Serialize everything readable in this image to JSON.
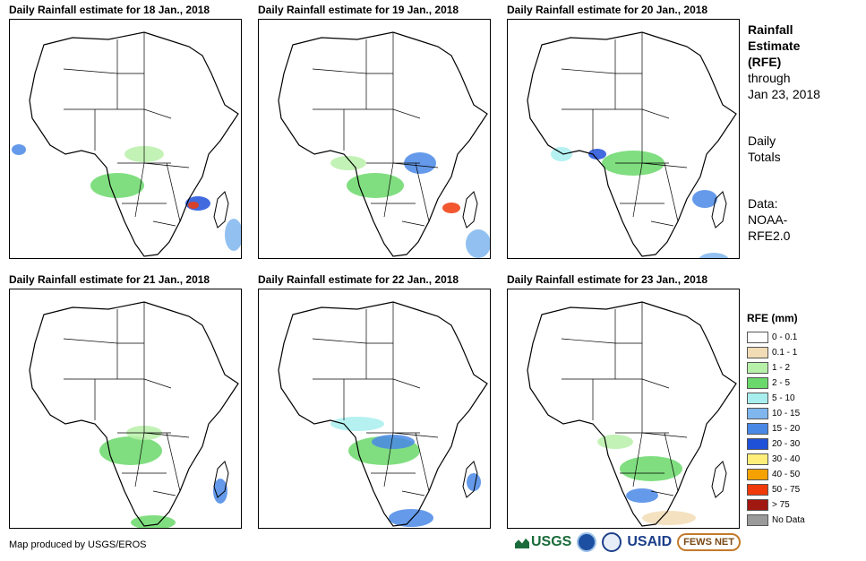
{
  "panels": [
    {
      "title": "Daily Rainfall estimate for 18 Jan., 2018"
    },
    {
      "title": "Daily Rainfall estimate for 19 Jan., 2018"
    },
    {
      "title": "Daily Rainfall estimate for 20 Jan., 2018"
    },
    {
      "title": "Daily Rainfall estimate for 21 Jan., 2018"
    },
    {
      "title": "Daily Rainfall estimate for 22 Jan., 2018"
    },
    {
      "title": "Daily Rainfall estimate for 23 Jan., 2018"
    }
  ],
  "sidebar": {
    "title_line1": "Rainfall",
    "title_line2": "Estimate",
    "title_line3": "(RFE)",
    "through_label": "through",
    "through_date": "Jan 23, 2018",
    "totals_line1": "Daily",
    "totals_line2": "Totals",
    "data_line1": "Data:",
    "data_line2": "NOAA-",
    "data_line3": "RFE2.0"
  },
  "legend": {
    "title": "RFE (mm)",
    "items": [
      {
        "label": "0 - 0.1",
        "color": "#ffffff"
      },
      {
        "label": "0.1 - 1",
        "color": "#f2dcb5"
      },
      {
        "label": "1 - 2",
        "color": "#b7f0a8"
      },
      {
        "label": "2 - 5",
        "color": "#6ad86a"
      },
      {
        "label": "5 - 10",
        "color": "#a8eeee"
      },
      {
        "label": "10 - 15",
        "color": "#7fb6ee"
      },
      {
        "label": "15 - 20",
        "color": "#4a88e6"
      },
      {
        "label": "20 - 30",
        "color": "#1f50d8"
      },
      {
        "label": "30 - 40",
        "color": "#ffef7a"
      },
      {
        "label": "40 - 50",
        "color": "#f5a200"
      },
      {
        "label": "50 - 75",
        "color": "#f03a0a"
      },
      {
        "label": "> 75",
        "color": "#a01810"
      },
      {
        "label": "No Data",
        "color": "#9a9a9a"
      }
    ]
  },
  "footer": {
    "credit": "Map produced by USGS/EROS",
    "logo_usgs": "USGS",
    "logo_usaid": "USAID",
    "logo_fews": "FEWS NET"
  }
}
